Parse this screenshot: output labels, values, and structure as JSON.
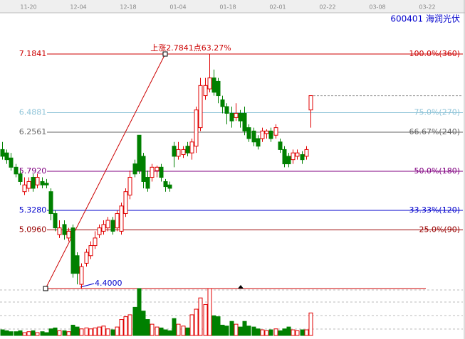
{
  "chart_data": {
    "type": "candlestick",
    "symbol": "600401  海润光伏",
    "x_labels": [
      "11-20",
      "12-04",
      "12-18",
      "01-04",
      "01-18",
      "02-01",
      "02-22",
      "03-08",
      "03-22"
    ],
    "annotation": "上涨2.7841点63.27%",
    "low": {
      "value": 4.4,
      "label": "4.4000"
    },
    "levels": [
      {
        "price": 7.1841,
        "ratio": "100.0%(360)",
        "color": "#cc0000"
      },
      {
        "price": 6.4881,
        "ratio": "75.0%(270)",
        "color": "#8fc4d8"
      },
      {
        "price": 6.2561,
        "ratio": "66.67%(240)",
        "color": "#666666"
      },
      {
        "price": {
          "value": 5.792,
          "label": "5.7920"
        },
        "ratio": "50.0%(180)",
        "color": "#800080"
      },
      {
        "price": {
          "value": 5.328,
          "label": "5.3280"
        },
        "ratio": "33.33%(120)",
        "color": "#0000cc"
      },
      {
        "price": {
          "value": 5.096,
          "label": "5.0960"
        },
        "ratio": "25.0%(90)",
        "color": "#990000"
      }
    ],
    "up_color": "#e00000",
    "down_color": "#008000",
    "ohlc": [
      [
        6.05,
        6.14,
        5.93,
        5.97
      ],
      [
        6.01,
        6.05,
        5.88,
        5.93
      ],
      [
        5.95,
        6.01,
        5.8,
        5.84
      ],
      [
        5.84,
        5.88,
        5.72,
        5.76
      ],
      [
        5.76,
        5.8,
        5.63,
        5.67
      ],
      [
        5.55,
        5.72,
        5.51,
        5.63
      ],
      [
        5.59,
        5.72,
        5.55,
        5.67
      ],
      [
        5.72,
        5.76,
        5.55,
        5.59
      ],
      [
        5.63,
        5.76,
        5.59,
        5.72
      ],
      [
        5.67,
        5.72,
        5.59,
        5.63
      ],
      [
        5.65,
        5.7,
        5.59,
        5.63
      ],
      [
        5.55,
        5.59,
        5.21,
        5.29
      ],
      [
        5.29,
        5.33,
        5.08,
        5.12
      ],
      [
        5.04,
        5.21,
        5.0,
        5.12
      ],
      [
        5.16,
        5.21,
        4.98,
        5.04
      ],
      [
        5.0,
        5.12,
        4.96,
        5.08
      ],
      [
        5.12,
        5.16,
        4.53,
        4.58
      ],
      [
        4.79,
        4.83,
        4.45,
        4.58
      ],
      [
        4.45,
        4.7,
        4.4,
        4.66
      ],
      [
        4.7,
        4.87,
        4.66,
        4.83
      ],
      [
        4.79,
        4.96,
        4.75,
        4.91
      ],
      [
        4.91,
        5.08,
        4.87,
        5.0
      ],
      [
        5.04,
        5.16,
        5.0,
        5.12
      ],
      [
        5.08,
        5.21,
        5.04,
        5.16
      ],
      [
        5.12,
        5.25,
        5.08,
        5.21
      ],
      [
        5.21,
        5.25,
        5.04,
        5.08
      ],
      [
        5.12,
        5.33,
        5.08,
        5.29
      ],
      [
        5.08,
        5.42,
        5.04,
        5.38
      ],
      [
        5.29,
        5.59,
        5.25,
        5.55
      ],
      [
        5.51,
        5.8,
        5.46,
        5.72
      ],
      [
        5.88,
        5.93,
        5.72,
        5.76
      ],
      [
        6.22,
        6.22,
        5.76,
        5.8
      ],
      [
        5.97,
        6.01,
        5.59,
        5.67
      ],
      [
        5.72,
        5.8,
        5.55,
        5.59
      ],
      [
        5.72,
        5.88,
        5.67,
        5.84
      ],
      [
        5.8,
        5.86,
        5.72,
        5.84
      ],
      [
        5.84,
        5.88,
        5.67,
        5.72
      ],
      [
        5.67,
        5.7,
        5.55,
        5.61
      ],
      [
        5.63,
        5.67,
        5.55,
        5.59
      ],
      [
        6.09,
        6.14,
        5.84,
        5.97
      ],
      [
        5.97,
        6.14,
        5.93,
        6.05
      ],
      [
        5.99,
        6.09,
        5.95,
        6.05
      ],
      [
        6.09,
        6.14,
        5.97,
        6.01
      ],
      [
        6.01,
        6.18,
        5.93,
        6.14
      ],
      [
        6.09,
        6.56,
        6.01,
        6.52
      ],
      [
        6.31,
        6.9,
        6.27,
        6.81
      ],
      [
        6.69,
        6.9,
        6.64,
        6.81
      ],
      [
        6.77,
        7.18,
        6.73,
        6.9
      ],
      [
        6.9,
        7.0,
        6.69,
        6.73
      ],
      [
        6.86,
        6.9,
        6.6,
        6.69
      ],
      [
        6.64,
        6.69,
        6.48,
        6.56
      ],
      [
        6.56,
        6.6,
        6.35,
        6.48
      ],
      [
        6.48,
        6.56,
        6.31,
        6.39
      ],
      [
        6.43,
        6.6,
        6.39,
        6.48
      ],
      [
        6.48,
        6.52,
        6.31,
        6.39
      ],
      [
        6.48,
        6.56,
        6.22,
        6.27
      ],
      [
        6.31,
        6.35,
        6.14,
        6.18
      ],
      [
        6.27,
        6.31,
        6.09,
        6.14
      ],
      [
        6.18,
        6.22,
        6.05,
        6.09
      ],
      [
        6.18,
        6.31,
        6.14,
        6.27
      ],
      [
        6.24,
        6.29,
        6.18,
        6.27
      ],
      [
        6.27,
        6.31,
        6.14,
        6.18
      ],
      [
        6.22,
        6.35,
        6.18,
        6.31
      ],
      [
        6.14,
        6.18,
        6.01,
        6.05
      ],
      [
        6.05,
        6.09,
        5.84,
        5.88
      ],
      [
        5.97,
        6.01,
        5.84,
        5.88
      ],
      [
        5.93,
        6.05,
        5.88,
        6.01
      ],
      [
        5.97,
        6.05,
        5.93,
        6.01
      ],
      [
        5.99,
        6.03,
        5.88,
        5.93
      ],
      [
        5.97,
        6.09,
        5.93,
        6.05
      ],
      [
        6.52,
        6.69,
        6.31,
        6.69
      ]
    ],
    "volume": [
      12,
      10,
      8,
      8,
      10,
      6,
      8,
      10,
      6,
      8,
      6,
      14,
      16,
      10,
      10,
      8,
      22,
      18,
      14,
      16,
      14,
      16,
      18,
      20,
      14,
      12,
      18,
      34,
      40,
      44,
      60,
      100,
      52,
      34,
      24,
      18,
      16,
      12,
      10,
      36,
      24,
      20,
      16,
      44,
      56,
      80,
      66,
      100,
      42,
      40,
      22,
      20,
      30,
      24,
      18,
      30,
      20,
      18,
      14,
      12,
      10,
      12,
      14,
      10,
      14,
      18,
      12,
      10,
      12,
      12,
      48
    ]
  }
}
